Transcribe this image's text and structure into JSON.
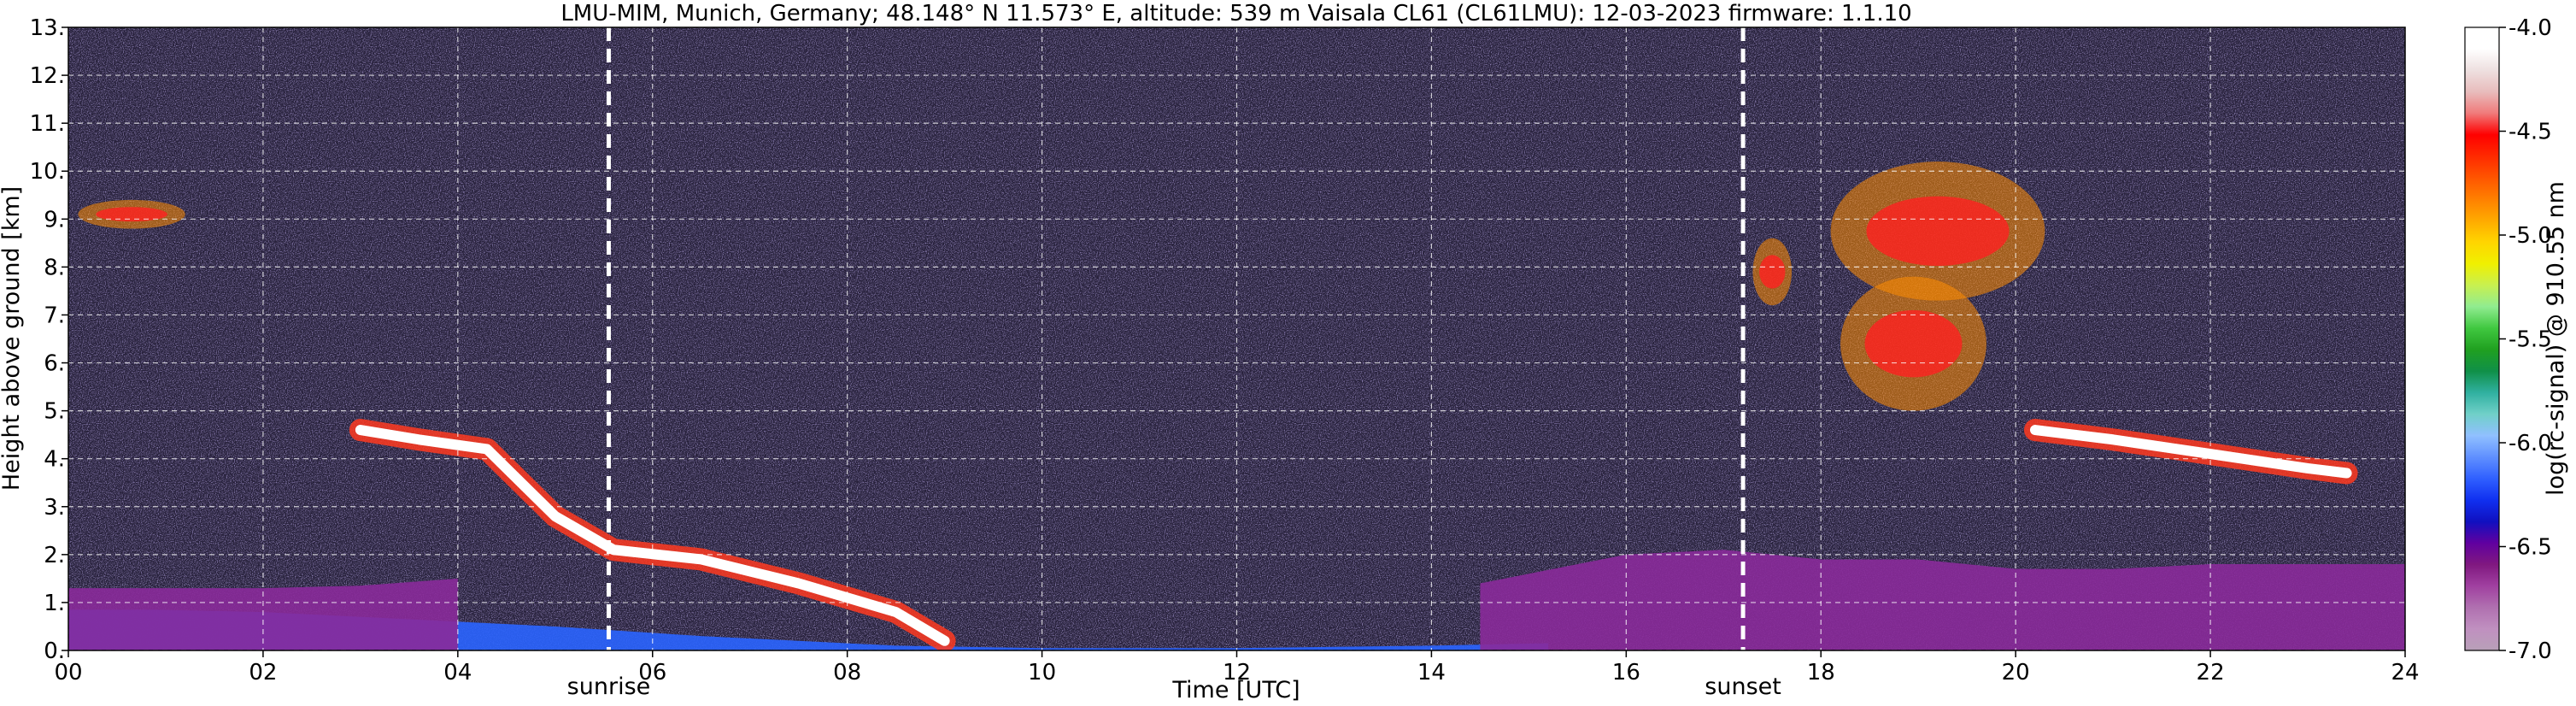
{
  "chart_data": {
    "type": "heatmap",
    "title": "LMU-MIM, Munich, Germany; 48.148° N 11.573° E, altitude: 539 m    Vaisala CL61 (CL61LMU): 12-03-2023    firmware: 1.1.10",
    "xlabel": "Time [UTC]",
    "ylabel": "Height above ground [km]",
    "xlim": [
      0,
      24
    ],
    "ylim": [
      0,
      13
    ],
    "x_ticks": [
      0,
      2,
      4,
      6,
      8,
      10,
      12,
      14,
      16,
      18,
      20,
      22,
      24
    ],
    "x_tick_labels": [
      "00",
      "02",
      "04",
      "06",
      "08",
      "10",
      "12",
      "14",
      "16",
      "18",
      "20",
      "22",
      "24"
    ],
    "y_ticks": [
      0,
      1,
      2,
      3,
      4,
      5,
      6,
      7,
      8,
      9,
      10,
      11,
      12,
      13
    ],
    "y_tick_labels": [
      "0.",
      "1.",
      "2.",
      "3.",
      "4.",
      "5.",
      "6.",
      "7.",
      "8.",
      "9.",
      "10.",
      "11.",
      "12.",
      "13."
    ],
    "grid": true,
    "markers": [
      {
        "label": "sunrise",
        "x": 5.55
      },
      {
        "label": "sunset",
        "x": 17.2
      }
    ],
    "colorbar": {
      "label": "log(rc-signal) @ 910.55 nm",
      "range": [
        -7.0,
        -4.0
      ],
      "ticks": [
        -4.0,
        -4.5,
        -5.0,
        -5.5,
        -6.0,
        -6.5,
        -7.0
      ],
      "tick_labels": [
        "-4.0",
        "-4.5",
        "-5.0",
        "-5.5",
        "-6.0",
        "-6.5",
        "-7.0"
      ],
      "colors": [
        "#ffffff",
        "#ffffff",
        "#eee0e0",
        "#e8bcbc",
        "#f07a7a",
        "#ff0000",
        "#ff2a00",
        "#ff5500",
        "#ff8000",
        "#ffaa00",
        "#ffd500",
        "#f0f000",
        "#c8f050",
        "#90ec90",
        "#40c840",
        "#20a020",
        "#109048",
        "#30b0a0",
        "#70d0c8",
        "#90c0ff",
        "#6090ff",
        "#3060ff",
        "#1030f0",
        "#1010c0",
        "#6000a0",
        "#801880",
        "#a040a0",
        "#b070b0",
        "#c090c0",
        "#b8a0b8"
      ]
    },
    "layers": [
      {
        "t": [
          0,
          0.9,
          2.0,
          3.5,
          5.0,
          6.5,
          8.5,
          10.0,
          12.0,
          14.0,
          15.2
        ],
        "top": [
          0.85,
          0.85,
          0.8,
          0.65,
          0.5,
          0.3,
          0.1,
          0.05,
          0.05,
          0.1,
          0.15
        ],
        "level": "blue"
      },
      {
        "t": [
          0,
          1.0,
          2.0,
          3.0,
          4.0
        ],
        "top": [
          1.3,
          1.3,
          1.3,
          1.35,
          1.5
        ],
        "level": "magenta"
      },
      {
        "t": [
          3.0,
          3.6,
          4.3,
          5.0,
          5.6,
          6.5,
          7.5,
          8.5,
          9.0
        ],
        "top": [
          4.6,
          4.4,
          4.2,
          2.8,
          2.1,
          1.9,
          1.4,
          0.8,
          0.2
        ],
        "level": "cloud"
      },
      {
        "t": [
          14.5,
          15.0,
          16.0,
          17.0,
          18.0,
          19.0,
          20.0,
          21.0,
          22.0,
          23.0,
          24.0
        ],
        "top": [
          1.4,
          1.6,
          2.0,
          2.1,
          1.9,
          1.9,
          1.7,
          1.7,
          1.8,
          1.8,
          1.8
        ],
        "level": "magenta"
      },
      {
        "t": [
          20.2,
          21.0,
          22.0,
          23.0,
          23.4
        ],
        "top": [
          4.6,
          4.4,
          4.1,
          3.8,
          3.7
        ],
        "level": "cloud"
      }
    ],
    "clouds_upper": [
      {
        "t": [
          18.1,
          20.3
        ],
        "h": [
          7.3,
          10.2
        ]
      },
      {
        "t": [
          17.3,
          17.7
        ],
        "h": [
          7.2,
          8.6
        ]
      },
      {
        "t": [
          18.2,
          19.7
        ],
        "h": [
          5.0,
          7.8
        ]
      },
      {
        "t": [
          0.1,
          1.2
        ],
        "h": [
          8.8,
          9.4
        ]
      }
    ]
  }
}
